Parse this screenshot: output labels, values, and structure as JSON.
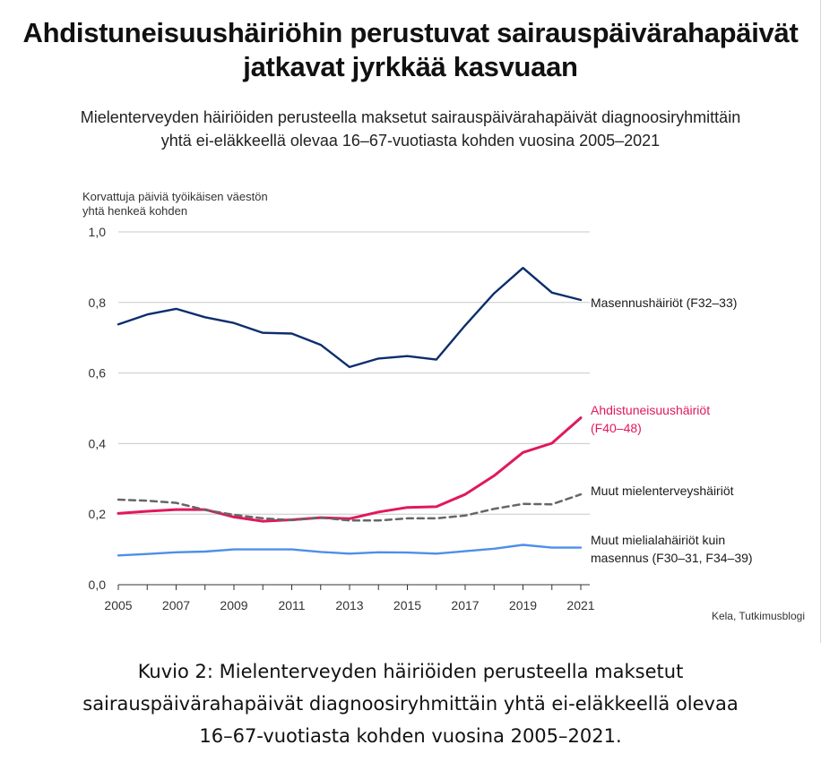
{
  "chart_data": {
    "type": "line",
    "title": "Ahdistuneisuushäiriöhin perustuvat sairauspäivärahapäivät jatkavat jyrkkää kasvuaan",
    "title_lines": [
      "Ahdistuneisuushäiriöhin perustuvat sairauspäivärahapäivät",
      "jatkavat jyrkkää kasvuaan"
    ],
    "subtitle_lines": [
      "Mielenterveyden häiriöiden perusteella maksetut sairauspäivärahapäivät diagnoosiryhmittäin",
      "yhtä ei-eläkkeellä olevaa 16–67-vuotiasta kohden vuosina 2005–2021"
    ],
    "ylabel_lines": [
      "Korvattuja päiviä työikäisen väestön",
      "yhtä henkeä kohden"
    ],
    "xlabel": "",
    "ylim": [
      0,
      1.0
    ],
    "yticks": [
      "0,0",
      "0,2",
      "0,4",
      "0,6",
      "0,8",
      "1,0"
    ],
    "ytick_values": [
      0,
      0.2,
      0.4,
      0.6,
      0.8,
      1.0
    ],
    "xticks": [
      "2005",
      "2007",
      "2009",
      "2011",
      "2013",
      "2015",
      "2017",
      "2019",
      "2021"
    ],
    "x": [
      2005,
      2006,
      2007,
      2008,
      2009,
      2010,
      2011,
      2012,
      2013,
      2014,
      2015,
      2016,
      2017,
      2018,
      2019,
      2020,
      2021
    ],
    "grid": true,
    "series": [
      {
        "name": "Masennushäiriöt (F32–33)",
        "label_lines": [
          "Masennushäiriöt (F32–33)"
        ],
        "color": "#0d2d6e",
        "dashed": false,
        "values": [
          0.738,
          0.766,
          0.782,
          0.758,
          0.742,
          0.714,
          0.712,
          0.68,
          0.617,
          0.641,
          0.648,
          0.638,
          0.735,
          0.826,
          0.898,
          0.828,
          0.807
        ]
      },
      {
        "name": "Ahdistuneisuushäiriöt (F40–48)",
        "label_lines": [
          "Ahdistuneisuushäiriöt",
          "(F40–48)"
        ],
        "color": "#e0185e",
        "dashed": false,
        "values": [
          0.202,
          0.208,
          0.213,
          0.213,
          0.192,
          0.18,
          0.184,
          0.19,
          0.187,
          0.206,
          0.219,
          0.221,
          0.256,
          0.309,
          0.375,
          0.401,
          0.473
        ]
      },
      {
        "name": "Muut mielenterveyshäiriöt",
        "label_lines": [
          "Muut mielenterveyshäiriöt"
        ],
        "color": "#666666",
        "dashed": true,
        "values": [
          0.241,
          0.238,
          0.232,
          0.212,
          0.198,
          0.188,
          0.183,
          0.19,
          0.182,
          0.182,
          0.188,
          0.188,
          0.196,
          0.215,
          0.229,
          0.228,
          0.256
        ]
      },
      {
        "name": "Muut mielialahäiriöt kuin masennus (F30–31, F34–39)",
        "label_lines": [
          "Muut mielialahäiriöt kuin",
          "masennus (F30–31, F34–39)"
        ],
        "color": "#4d8fea",
        "dashed": false,
        "values": [
          0.083,
          0.087,
          0.092,
          0.094,
          0.1,
          0.1,
          0.1,
          0.093,
          0.088,
          0.092,
          0.091,
          0.088,
          0.095,
          0.102,
          0.113,
          0.105,
          0.105
        ]
      }
    ],
    "source": "Kela, Tutkimusblogi"
  },
  "caption_lines": [
    "Kuvio 2: Mielenterveyden häiriöiden perusteella maksetut",
    "sairauspäivärahapäivät diagnoosiryhmittäin yhtä ei-eläkkeellä olevaa",
    "16–67-vuotiasta kohden vuosina 2005–2021."
  ]
}
